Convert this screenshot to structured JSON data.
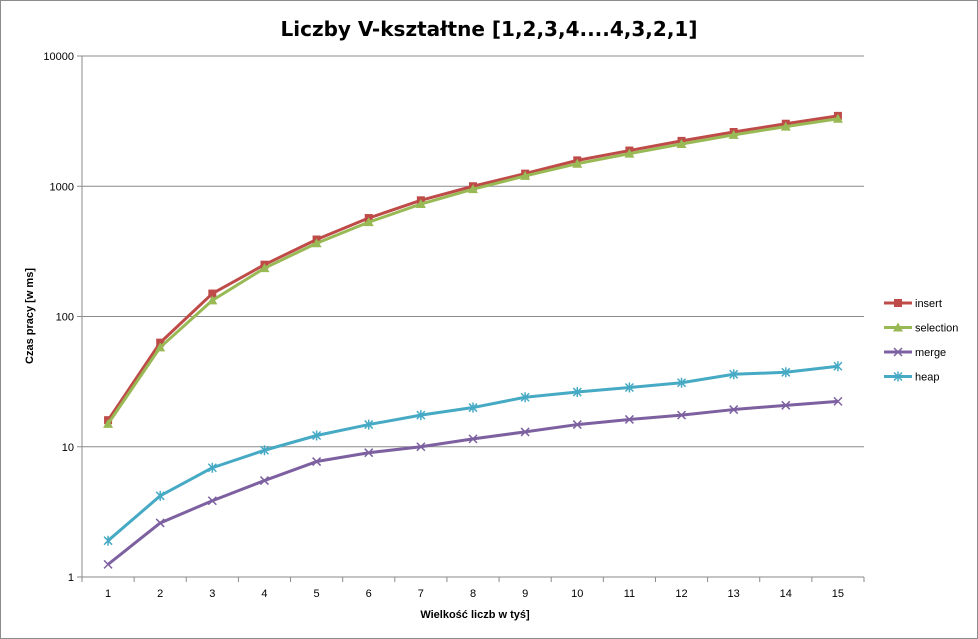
{
  "chart_data": {
    "type": "line",
    "title": "Liczby V-kształtne [1,2,3,4....4,3,2,1]",
    "xlabel": "Wielkość liczb w tyś]",
    "ylabel": "Czas pracy [w ms]",
    "y_scale": "log",
    "ylim": [
      1,
      10000
    ],
    "y_ticks": [
      "1",
      "10",
      "100",
      "1000",
      "10000"
    ],
    "y_tick_values": [
      1,
      10,
      100,
      1000,
      10000
    ],
    "x": [
      "1",
      "2",
      "3",
      "4",
      "5",
      "6",
      "7",
      "8",
      "9",
      "10",
      "11",
      "12",
      "13",
      "14",
      "15"
    ],
    "grid": "horizontal major",
    "legend_position": "right",
    "series": [
      {
        "name": "insert",
        "color": "#be4b48",
        "marker": "square",
        "values": [
          16,
          63,
          150,
          250,
          390,
          570,
          780,
          1000,
          1250,
          1580,
          1880,
          2230,
          2610,
          3020,
          3470
        ]
      },
      {
        "name": "selection",
        "color": "#98b954",
        "marker": "triangle",
        "values": [
          15,
          58,
          133,
          235,
          365,
          530,
          730,
          950,
          1200,
          1490,
          1780,
          2110,
          2480,
          2870,
          3300
        ]
      },
      {
        "name": "merge",
        "color": "#7d60a0",
        "marker": "x",
        "values": [
          1.25,
          2.6,
          3.85,
          5.5,
          7.7,
          9,
          10,
          11.5,
          13,
          14.8,
          16.2,
          17.5,
          19.3,
          20.8,
          22.3
        ]
      },
      {
        "name": "heap",
        "color": "#46aac5",
        "marker": "star",
        "values": [
          1.9,
          4.2,
          6.9,
          9.4,
          12.2,
          14.8,
          17.5,
          20,
          24,
          26.3,
          28.5,
          31,
          36,
          37.3,
          41.5
        ]
      }
    ]
  }
}
